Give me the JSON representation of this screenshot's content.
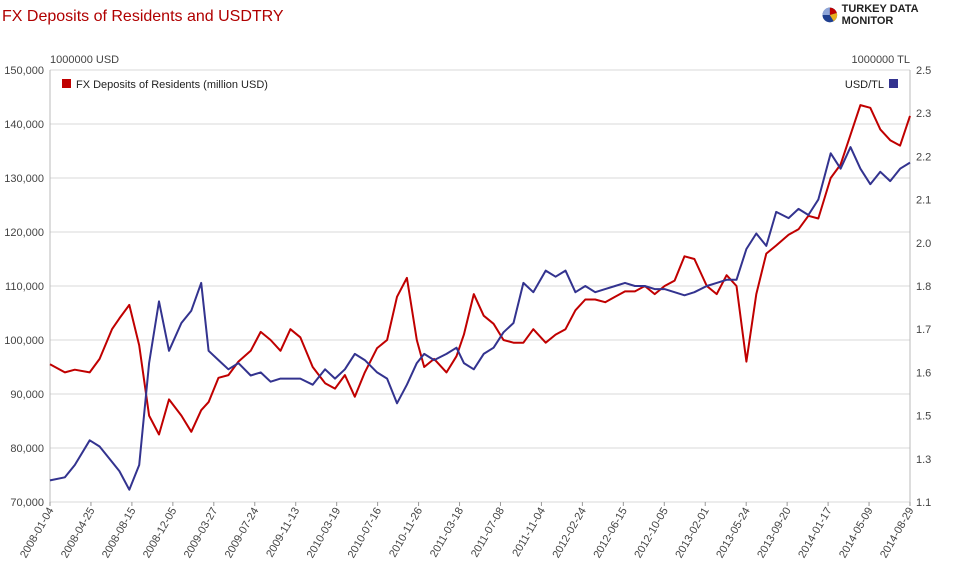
{
  "header": {
    "title": "FX Deposits of Residents and USDTRY",
    "brand": "TURKEY DATA MONITOR"
  },
  "chart_data": {
    "type": "line",
    "title": "FX Deposits of Residents and USDTRY",
    "left_unit": "1000000 USD",
    "right_unit": "1000000 TL",
    "grid": true,
    "legend": [
      {
        "name": "FX Deposits of Residents (million USD)",
        "color": "#c00000",
        "position": "top-left"
      },
      {
        "name": "USD/TL",
        "color": "#33338f",
        "position": "top-right"
      }
    ],
    "y_left": {
      "min": 70000,
      "max": 150000,
      "ticks": [
        "70,000",
        "80,000",
        "90,000",
        "100,000",
        "110,000",
        "120,000",
        "130,000",
        "140,000",
        "150,000"
      ]
    },
    "y_right": {
      "min": 1.1,
      "max": 2.5,
      "ticks": [
        "1.1",
        "1.3",
        "1.5",
        "1.6",
        "1.7",
        "1.8",
        "2.0",
        "2.1",
        "2.2",
        "2.3",
        "2.5"
      ]
    },
    "x_ticks": [
      "2008-01-04",
      "2008-04-25",
      "2008-08-15",
      "2008-12-05",
      "2009-03-27",
      "2009-07-24",
      "2009-11-13",
      "2010-03-19",
      "2010-07-16",
      "2010-11-26",
      "2011-03-18",
      "2011-07-08",
      "2011-11-04",
      "2012-02-24",
      "2012-06-15",
      "2012-10-05",
      "2013-02-01",
      "2013-05-24",
      "2013-09-20",
      "2014-01-17",
      "2014-05-09",
      "2014-08-29"
    ],
    "series": [
      {
        "name": "FX Deposits of Residents (million USD)",
        "axis": "left",
        "color": "#c00000",
        "x": [
          "2008-01-04",
          "2008-02-15",
          "2008-03-14",
          "2008-04-25",
          "2008-05-23",
          "2008-06-27",
          "2008-07-18",
          "2008-08-15",
          "2008-09-12",
          "2008-10-10",
          "2008-11-07",
          "2008-12-05",
          "2009-01-09",
          "2009-02-06",
          "2009-03-06",
          "2009-03-27",
          "2009-04-24",
          "2009-05-22",
          "2009-06-19",
          "2009-07-24",
          "2009-08-21",
          "2009-09-18",
          "2009-10-16",
          "2009-11-13",
          "2009-12-11",
          "2010-01-15",
          "2010-02-19",
          "2010-03-19",
          "2010-04-16",
          "2010-05-14",
          "2010-06-11",
          "2010-07-16",
          "2010-08-13",
          "2010-09-10",
          "2010-10-08",
          "2010-11-05",
          "2010-11-26",
          "2010-12-24",
          "2011-01-28",
          "2011-02-25",
          "2011-03-18",
          "2011-04-15",
          "2011-05-13",
          "2011-06-10",
          "2011-07-08",
          "2011-08-05",
          "2011-09-02",
          "2011-09-30",
          "2011-11-04",
          "2011-12-02",
          "2011-12-30",
          "2012-01-27",
          "2012-02-24",
          "2012-03-23",
          "2012-04-20",
          "2012-05-18",
          "2012-06-15",
          "2012-07-13",
          "2012-08-10",
          "2012-09-07",
          "2012-10-05",
          "2012-11-02",
          "2012-11-30",
          "2012-12-28",
          "2013-02-01",
          "2013-03-01",
          "2013-03-29",
          "2013-04-26",
          "2013-05-24",
          "2013-06-21",
          "2013-07-19",
          "2013-08-16",
          "2013-09-20",
          "2013-10-18",
          "2013-11-15",
          "2013-12-13",
          "2014-01-17",
          "2014-02-14",
          "2014-03-14",
          "2014-04-11",
          "2014-05-09",
          "2014-06-06",
          "2014-07-04",
          "2014-08-01",
          "2014-08-29"
        ],
        "y": [
          95500,
          94000,
          94500,
          94000,
          96500,
          102000,
          104000,
          106500,
          99000,
          86000,
          82500,
          89000,
          86000,
          83000,
          87000,
          88500,
          93000,
          93500,
          96000,
          98000,
          101500,
          100000,
          98000,
          102000,
          100500,
          95000,
          92000,
          91000,
          93500,
          89500,
          94000,
          98500,
          100000,
          108000,
          111500,
          100000,
          95000,
          96500,
          94000,
          97000,
          101000,
          108500,
          104500,
          103000,
          100000,
          99500,
          99500,
          102000,
          99500,
          101000,
          102000,
          105500,
          107500,
          107500,
          107000,
          108000,
          109000,
          109000,
          110000,
          108500,
          110000,
          111000,
          115500,
          115000,
          110000,
          108500,
          112000,
          110000,
          96000,
          108500,
          116000,
          117500,
          119500,
          120500,
          123000,
          122500,
          130000,
          132500,
          138000,
          143500,
          143000,
          139000,
          137000,
          136000,
          141500
        ],
        "values": [
          95500,
          94000,
          94500,
          94000,
          96500,
          102000,
          104000,
          106500,
          99000,
          86000,
          82500,
          89000,
          86000,
          83000,
          87000,
          88500,
          93000,
          93500,
          96000,
          98000,
          101500,
          100000,
          98000,
          102000,
          100500,
          95000,
          92000,
          91000,
          93500,
          89500,
          94000,
          98500,
          100000,
          108000,
          111500,
          100000,
          95000,
          96500,
          94000,
          97000,
          101000,
          108500,
          104500,
          103000,
          100000,
          99500,
          99500,
          102000,
          99500,
          101000,
          102000,
          105500,
          107500,
          107500,
          107000,
          108000,
          109000,
          109000,
          110000,
          108500,
          110000,
          111000,
          115500,
          115000,
          110000,
          108500,
          112000,
          110000,
          96000,
          108500,
          116000,
          117500,
          119500,
          120500,
          123000,
          122500,
          130000,
          132500,
          138000,
          143500,
          143000,
          139000,
          137000,
          136000,
          141500
        ]
      },
      {
        "name": "USD/TL",
        "axis": "right",
        "color": "#33338f",
        "x": [
          "2008-01-04",
          "2008-02-15",
          "2008-03-14",
          "2008-04-25",
          "2008-05-23",
          "2008-06-27",
          "2008-07-18",
          "2008-08-15",
          "2008-09-12",
          "2008-10-10",
          "2008-11-07",
          "2008-12-05",
          "2009-01-09",
          "2009-02-06",
          "2009-03-06",
          "2009-03-27",
          "2009-04-24",
          "2009-05-22",
          "2009-06-19",
          "2009-07-24",
          "2009-08-21",
          "2009-09-18",
          "2009-10-16",
          "2009-11-13",
          "2009-12-11",
          "2010-01-15",
          "2010-02-19",
          "2010-03-19",
          "2010-04-16",
          "2010-05-14",
          "2010-06-11",
          "2010-07-16",
          "2010-08-13",
          "2010-09-10",
          "2010-10-08",
          "2010-11-05",
          "2010-11-26",
          "2010-12-24",
          "2011-01-28",
          "2011-02-25",
          "2011-03-18",
          "2011-04-15",
          "2011-05-13",
          "2011-06-10",
          "2011-07-08",
          "2011-08-05",
          "2011-09-02",
          "2011-09-30",
          "2011-11-04",
          "2011-12-02",
          "2011-12-30",
          "2012-01-27",
          "2012-02-24",
          "2012-03-23",
          "2012-04-20",
          "2012-05-18",
          "2012-06-15",
          "2012-07-13",
          "2012-08-10",
          "2012-09-07",
          "2012-10-05",
          "2012-11-02",
          "2012-11-30",
          "2012-12-28",
          "2013-02-01",
          "2013-03-01",
          "2013-03-29",
          "2013-04-26",
          "2013-05-24",
          "2013-06-21",
          "2013-07-19",
          "2013-08-16",
          "2013-09-20",
          "2013-10-18",
          "2013-11-15",
          "2013-12-13",
          "2014-01-17",
          "2014-02-14",
          "2014-03-14",
          "2014-04-11",
          "2014-05-09",
          "2014-06-06",
          "2014-07-04",
          "2014-08-01",
          "2014-08-29"
        ],
        "y": [
          1.17,
          1.18,
          1.22,
          1.3,
          1.28,
          1.23,
          1.2,
          1.14,
          1.22,
          1.55,
          1.75,
          1.59,
          1.68,
          1.72,
          1.81,
          1.59,
          1.56,
          1.53,
          1.55,
          1.51,
          1.52,
          1.49,
          1.5,
          1.5,
          1.5,
          1.48,
          1.53,
          1.5,
          1.53,
          1.58,
          1.56,
          1.52,
          1.5,
          1.42,
          1.48,
          1.55,
          1.58,
          1.56,
          1.58,
          1.6,
          1.55,
          1.53,
          1.58,
          1.6,
          1.65,
          1.68,
          1.81,
          1.78,
          1.85,
          1.83,
          1.85,
          1.78,
          1.8,
          1.78,
          1.79,
          1.8,
          1.81,
          1.8,
          1.8,
          1.79,
          1.79,
          1.78,
          1.77,
          1.78,
          1.8,
          1.81,
          1.82,
          1.82,
          1.92,
          1.97,
          1.93,
          2.04,
          2.02,
          2.05,
          2.03,
          2.08,
          2.23,
          2.18,
          2.25,
          2.18,
          2.13,
          2.17,
          2.14,
          2.18,
          2.2
        ],
        "values": [
          1.17,
          1.18,
          1.22,
          1.3,
          1.28,
          1.23,
          1.2,
          1.14,
          1.22,
          1.55,
          1.75,
          1.59,
          1.68,
          1.72,
          1.81,
          1.59,
          1.56,
          1.53,
          1.55,
          1.51,
          1.52,
          1.49,
          1.5,
          1.5,
          1.5,
          1.48,
          1.53,
          1.5,
          1.53,
          1.58,
          1.56,
          1.52,
          1.5,
          1.42,
          1.48,
          1.55,
          1.58,
          1.56,
          1.58,
          1.6,
          1.55,
          1.53,
          1.58,
          1.6,
          1.65,
          1.68,
          1.81,
          1.78,
          1.85,
          1.83,
          1.85,
          1.78,
          1.8,
          1.78,
          1.79,
          1.8,
          1.81,
          1.8,
          1.8,
          1.79,
          1.79,
          1.78,
          1.77,
          1.78,
          1.8,
          1.81,
          1.82,
          1.82,
          1.92,
          1.97,
          1.93,
          2.04,
          2.02,
          2.05,
          2.03,
          2.08,
          2.23,
          2.18,
          2.25,
          2.18,
          2.13,
          2.17,
          2.14,
          2.18,
          2.2
        ]
      }
    ]
  },
  "colors": {
    "title": "#b00000",
    "deposits": "#c00000",
    "usdtl": "#33338f",
    "grid": "#d8d8d8"
  }
}
